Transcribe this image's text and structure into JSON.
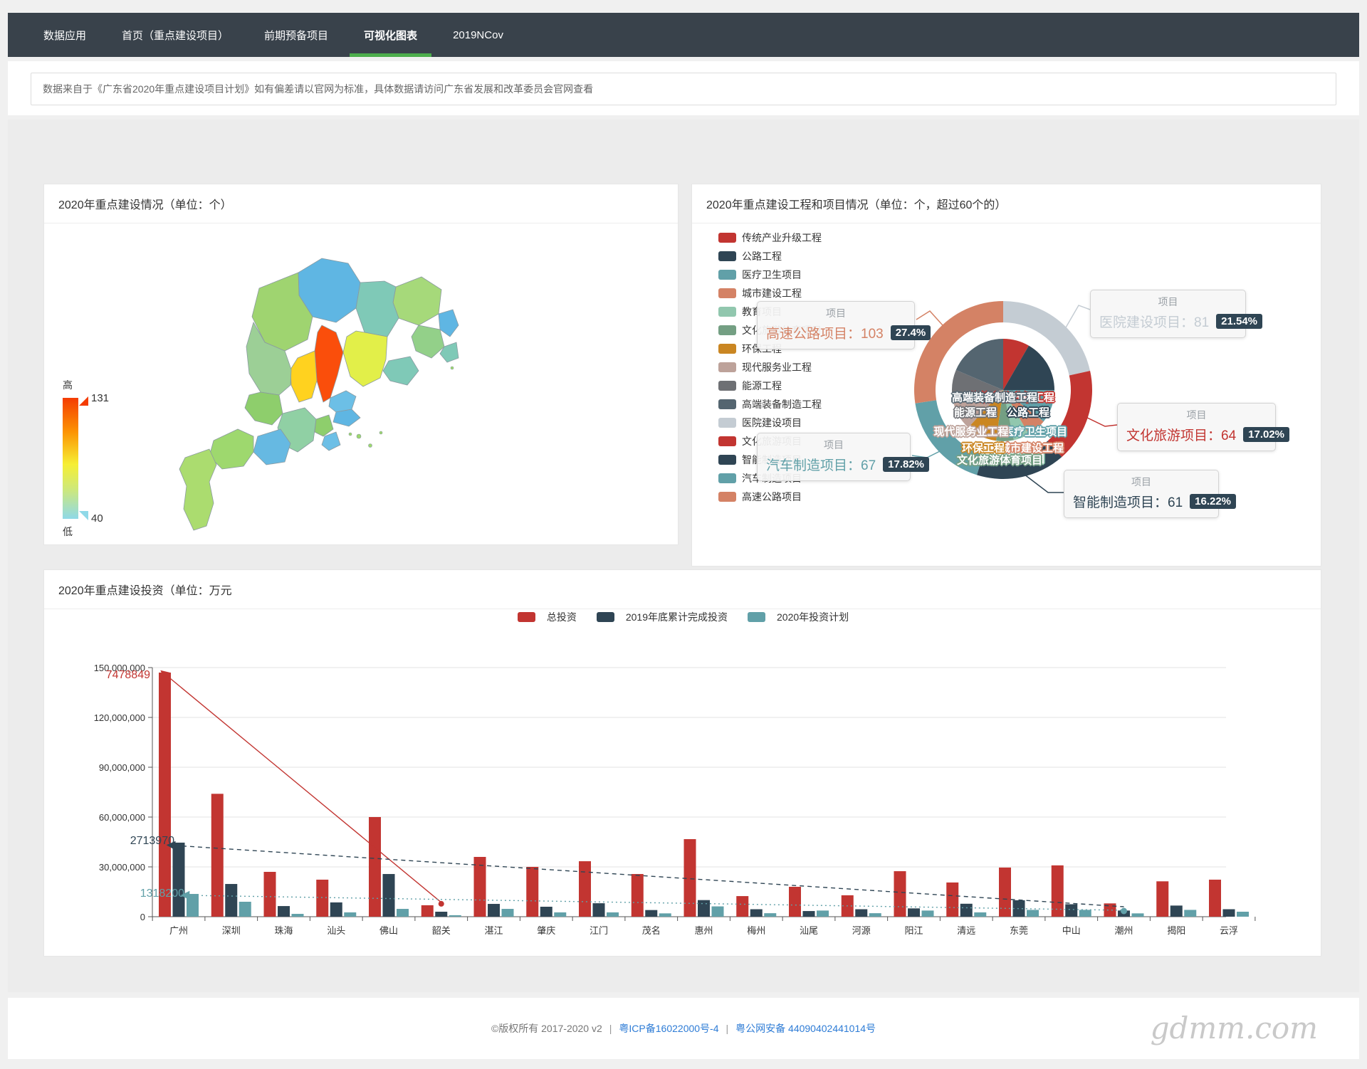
{
  "nav": {
    "items": [
      {
        "label": "数据应用",
        "active": false
      },
      {
        "label": "首页（重点建设项目）",
        "active": false
      },
      {
        "label": "前期预备项目",
        "active": false
      },
      {
        "label": "可视化图表",
        "active": true
      },
      {
        "label": "2019NCov",
        "active": false
      }
    ],
    "active_underline_color": "#4cae4c",
    "bg_color": "#39424b"
  },
  "notice": {
    "text": "数据来自于《广东省2020年重点建设项目计划》如有偏差请以官网为标准，具体数据请访问广东省发展和改革委员会官网查看"
  },
  "map_panel": {
    "title": "2020年重点建设情况（单位：个）",
    "legend": {
      "high_label": "高",
      "low_label": "低",
      "max": "131",
      "min": "40"
    }
  },
  "donut_panel": {
    "title": "2020年重点建设工程和项目情况（单位：个，超过60个的）",
    "legend": [
      {
        "label": "传统产业升级工程",
        "color": "#c23531"
      },
      {
        "label": "公路工程",
        "color": "#2f4554"
      },
      {
        "label": "医疗卫生项目",
        "color": "#61a0a8"
      },
      {
        "label": "城市建设工程",
        "color": "#d48265"
      },
      {
        "label": "教育项目",
        "color": "#91c7ae"
      },
      {
        "label": "文化旅游体育项目",
        "color": "#749f83"
      },
      {
        "label": "环保工程",
        "color": "#ca8622"
      },
      {
        "label": "现代服务业工程",
        "color": "#bda29a"
      },
      {
        "label": "能源工程",
        "color": "#6e7074"
      },
      {
        "label": "高端装备制造工程",
        "color": "#546570"
      },
      {
        "label": "医院建设项目",
        "color": "#c4ccd3"
      },
      {
        "label": "文化旅游项目",
        "color": "#c23531"
      },
      {
        "label": "智能制造项目",
        "color": "#2f4554"
      },
      {
        "label": "汽车制造项目",
        "color": "#61a0a8"
      },
      {
        "label": "高速公路项目",
        "color": "#d48265"
      }
    ],
    "tooltips": [
      {
        "header": "项目",
        "name": "高速公路项目",
        "value": "103",
        "label": "高速公路项目：103",
        "percent": "27.4%",
        "color": "#d48265"
      },
      {
        "header": "项目",
        "name": "汽车制造项目",
        "value": "67",
        "label": "汽车制造项目：67",
        "percent": "17.82%",
        "color": "#61a0a8"
      },
      {
        "header": "项目",
        "name": "医院建设项目",
        "value": "81",
        "label": "医院建设项目：81",
        "percent": "21.54%",
        "color": "#c4ccd3"
      },
      {
        "header": "项目",
        "name": "文化旅游项目",
        "value": "64",
        "label": "文化旅游项目：64",
        "percent": "17.02%",
        "color": "#c23531"
      },
      {
        "header": "项目",
        "name": "智能制造项目",
        "value": "61",
        "label": "智能制造项目：61",
        "percent": "16.22%",
        "color": "#2f4554"
      }
    ]
  },
  "invest_panel": {
    "title": "2020年重点建设投资（单位：万元",
    "legend": [
      {
        "label": "总投资",
        "color": "#c23531"
      },
      {
        "label": "2019年底累计完成投资",
        "color": "#2f4554"
      },
      {
        "label": "2020年投资计划",
        "color": "#61a0a8"
      }
    ]
  },
  "footer": {
    "copyright": "©版权所有 2017-2020 v2",
    "sep": "|",
    "links": [
      "粤ICP备16022000号-4",
      "粤公网安备 44090402441014号"
    ]
  },
  "watermark": {
    "text": "gdmm.com"
  },
  "chart_data": [
    {
      "id": "guangdong-choropleth",
      "type": "map",
      "title": "2020年重点建设情况（单位：个）",
      "value_range": [
        40,
        131
      ],
      "regions": [
        {
          "name": "韶关",
          "color": "#5fb6e3"
        },
        {
          "name": "清远",
          "color": "#9fd470"
        },
        {
          "name": "梅州",
          "color": "#a6d97a"
        },
        {
          "name": "河源",
          "color": "#7fc9b7"
        },
        {
          "name": "潮州",
          "color": "#5fb6e3"
        },
        {
          "name": "揭阳",
          "color": "#93d089"
        },
        {
          "name": "汕头",
          "color": "#7fc9b7"
        },
        {
          "name": "汕尾",
          "color": "#7fc9b7"
        },
        {
          "name": "惠州",
          "color": "#e2ef49"
        },
        {
          "name": "广州",
          "color": "#fa4e0b"
        },
        {
          "name": "佛山",
          "color": "#ffd21f"
        },
        {
          "name": "东莞",
          "color": "#6cbfe6"
        },
        {
          "name": "深圳",
          "color": "#5fb6e3"
        },
        {
          "name": "肇庆",
          "color": "#9ccf96"
        },
        {
          "name": "云浮",
          "color": "#8ece6c"
        },
        {
          "name": "江门",
          "color": "#90d0a4"
        },
        {
          "name": "中山",
          "color": "#8ece6c"
        },
        {
          "name": "珠海",
          "color": "#6cbfe6"
        },
        {
          "name": "阳江",
          "color": "#66b9e2"
        },
        {
          "name": "茂名",
          "color": "#9ed86e"
        },
        {
          "name": "湛江",
          "color": "#abdc6f"
        }
      ]
    },
    {
      "id": "project-donut",
      "type": "pie",
      "title": "2020年重点建设工程和项目情况（单位：个，超过60个的）",
      "inner_series": {
        "name": "工程",
        "sectors": [
          {
            "name": "传统产业升级工程",
            "color": "#c23531",
            "angle": 30
          },
          {
            "name": "公路工程",
            "color": "#2f4554",
            "angle": 60
          },
          {
            "name": "医疗卫生项目",
            "color": "#61a0a8",
            "angle": 38
          },
          {
            "name": "城市建设工程",
            "color": "#d48265",
            "angle": 22
          },
          {
            "name": "教育项目",
            "color": "#91c7ae",
            "angle": 18
          },
          {
            "name": "文化旅游体育项目",
            "color": "#749f83",
            "angle": 20
          },
          {
            "name": "环保工程",
            "color": "#ca8622",
            "angle": 35
          },
          {
            "name": "现代服务业工程",
            "color": "#bda29a",
            "angle": 38
          },
          {
            "name": "能源工程",
            "color": "#6e7074",
            "angle": 32
          },
          {
            "name": "高端装备制造工程",
            "color": "#546570",
            "angle": 67
          }
        ]
      },
      "outer_series": {
        "name": "项目",
        "sectors": [
          {
            "name": "医院建设项目",
            "color": "#c4ccd3",
            "value": 81,
            "percent": 21.54
          },
          {
            "name": "文化旅游项目",
            "color": "#c23531",
            "value": 64,
            "percent": 17.02
          },
          {
            "name": "智能制造项目",
            "color": "#2f4554",
            "value": 61,
            "percent": 16.22
          },
          {
            "name": "汽车制造项目",
            "color": "#61a0a8",
            "value": 67,
            "percent": 17.82
          },
          {
            "name": "高速公路项目",
            "color": "#d48265",
            "value": 103,
            "percent": 27.4
          }
        ]
      }
    },
    {
      "id": "investment-bars",
      "type": "bar",
      "title": "2020年重点建设投资（单位：万元",
      "categories": [
        "广州",
        "深圳",
        "珠海",
        "汕头",
        "佛山",
        "韶关",
        "湛江",
        "肇庆",
        "江门",
        "茂名",
        "惠州",
        "梅州",
        "汕尾",
        "河源",
        "阳江",
        "清远",
        "东莞",
        "中山",
        "潮州",
        "揭阳",
        "云浮"
      ],
      "series": [
        {
          "name": "总投资",
          "color": "#c23531",
          "values": [
            147000000,
            74000000,
            27000000,
            22300000,
            60000000,
            6900000,
            36000000,
            30000000,
            33400000,
            25700000,
            46700000,
            12400000,
            18000000,
            12900000,
            27400000,
            20600000,
            29600000,
            30900000,
            8000000,
            21300000,
            22300000
          ]
        },
        {
          "name": "2019年底累计完成投资",
          "color": "#2f4554",
          "values": [
            44600000,
            19700000,
            6400000,
            8600000,
            25700000,
            3000000,
            7700000,
            6000000,
            8100000,
            4000000,
            10000000,
            4500000,
            3400000,
            4500000,
            5000000,
            7800000,
            9900000,
            7500000,
            3700000,
            6700000,
            4500000
          ]
        },
        {
          "name": "2020年投资计划",
          "color": "#61a0a8",
          "values": [
            13700000,
            9000000,
            1700000,
            2600000,
            4700000,
            900000,
            4700000,
            2600000,
            2600000,
            2000000,
            6200000,
            2100000,
            3700000,
            2100000,
            3700000,
            2600000,
            4100000,
            4100000,
            2000000,
            4100000,
            3000000
          ]
        }
      ],
      "ylim": [
        0,
        150000000
      ],
      "y_ticks": [
        "0",
        "30,000,000",
        "60,000,000",
        "90,000,000",
        "120,000,000",
        "150,000,000"
      ],
      "grid": true,
      "annotations": [
        {
          "text": "7478849",
          "series": "总投资",
          "color": "#c23531"
        },
        {
          "text": "2713970",
          "series": "2019年底累计完成投资",
          "color": "#2f4554"
        },
        {
          "text": "1318200",
          "series": "2020年投资计划",
          "color": "#61a0a8"
        }
      ]
    }
  ]
}
